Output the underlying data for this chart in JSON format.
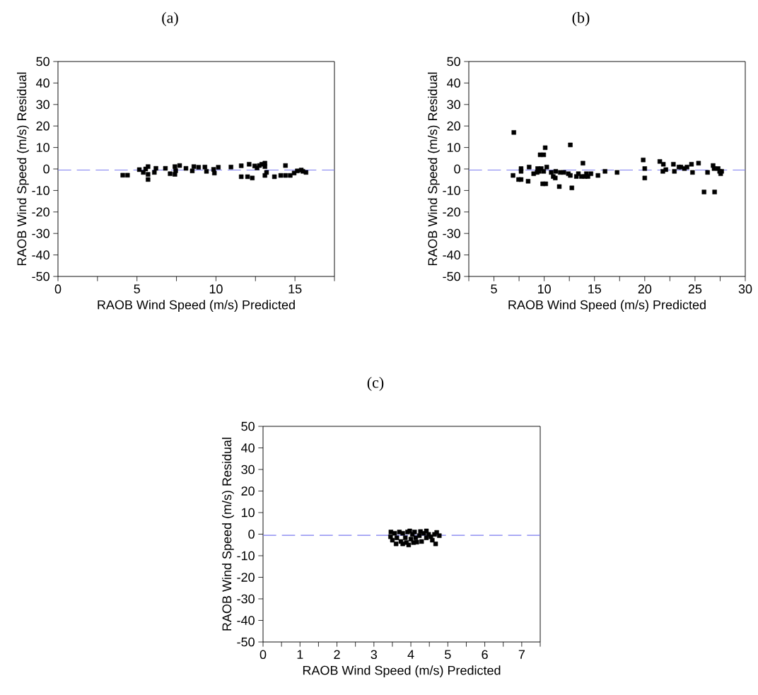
{
  "chart_data": [
    {
      "type": "scatter",
      "title": "(a)",
      "xlabel": "RAOB Wind Speed (m/s) Predicted",
      "ylabel": "RAOB Wind Speed (m/s) Residual",
      "color": "#000000",
      "marker": "square",
      "x": [
        4.1,
        4.4,
        5.15,
        5.4,
        5.55,
        5.7,
        5.7,
        5.7,
        6.1,
        6.2,
        6.8,
        7.1,
        7.4,
        7.4,
        7.45,
        7.7,
        8.1,
        8.5,
        8.6,
        8.9,
        9.3,
        9.4,
        9.85,
        9.9,
        10.15,
        10.95,
        11.6,
        11.6,
        12.0,
        12.1,
        12.3,
        12.45,
        12.6,
        12.75,
        12.9,
        13.1,
        13.1,
        13.2,
        13.1,
        13.7,
        14.1,
        14.4,
        14.4,
        14.7,
        14.95,
        15.15,
        15.4,
        15.5,
        15.7
      ],
      "values": [
        -2.9,
        -2.9,
        -0.3,
        -1.6,
        0,
        1.1,
        -2.5,
        -4.9,
        -1.6,
        0.3,
        0.3,
        -2.2,
        1.1,
        -2.5,
        -0.8,
        1.6,
        0.3,
        -0.9,
        1.1,
        0.8,
        0.9,
        -1.1,
        -0.2,
        -1.9,
        0.8,
        0.9,
        1.5,
        -3.6,
        -3.6,
        2.2,
        -4.2,
        1.4,
        0.5,
        1.6,
        2.2,
        2.7,
        1.1,
        -1.6,
        -3.0,
        -3.6,
        -3.0,
        1.6,
        -3.0,
        -3.0,
        -1.9,
        -0.9,
        -0.5,
        -1.1,
        -1.6
      ],
      "xlim": [
        0,
        17.5
      ],
      "ylim": [
        -50,
        50
      ],
      "xticks": [
        0,
        {
          "value": 2.5,
          "label": null
        },
        5,
        {
          "value": 7.5,
          "label": null
        },
        10,
        {
          "value": 12.5,
          "label": null
        },
        15,
        {
          "value": 17.5,
          "label": null
        }
      ],
      "yticks": [
        -50,
        -40,
        -30,
        -20,
        -10,
        0,
        10,
        20,
        30,
        40,
        50
      ],
      "ref_lines": [
        {
          "axis": "y",
          "value": -0.5,
          "color": "#7b7bf0",
          "line_style": "dashed"
        }
      ]
    },
    {
      "type": "scatter",
      "title": "(b)",
      "xlabel": "RAOB Wind Speed (m/s) Predicted",
      "ylabel": "RAOB Wind Speed (m/s) Residual",
      "color": "#000000",
      "marker": "square",
      "x": [
        6.98,
        6.9,
        7.45,
        7.7,
        7.7,
        7.7,
        8.4,
        8.5,
        8.95,
        9.3,
        9.35,
        9.5,
        9.6,
        9.95,
        9.7,
        9.85,
        10.15,
        9.95,
        10.1,
        10.25,
        10.7,
        10.9,
        11.1,
        11.15,
        11.5,
        11.6,
        11.95,
        12.4,
        12.6,
        12.6,
        12.75,
        13.2,
        13.4,
        13.85,
        13.7,
        14.05,
        14.35,
        14.2,
        14.65,
        15.35,
        16.05,
        17.25,
        19.85,
        20.0,
        20.0,
        21.5,
        21.85,
        21.8,
        22.1,
        22.85,
        22.95,
        23.4,
        23.6,
        23.95,
        24.2,
        24.65,
        24.75,
        25.35,
        25.9,
        26.25,
        26.8,
        26.95,
        26.9,
        27.3,
        27.45,
        27.55,
        27.65
      ],
      "values": [
        17.0,
        -3.0,
        -4.9,
        -4.9,
        0.2,
        -1.1,
        -5.7,
        0.9,
        -2.2,
        -1.6,
        0.2,
        -1.1,
        6.6,
        6.6,
        0.2,
        -6.9,
        -6.9,
        -1.1,
        9.9,
        0.9,
        -1.6,
        -3.5,
        -4.2,
        -1.1,
        -8.2,
        -1.6,
        -1.6,
        -2.2,
        -3.0,
        11.2,
        -8.8,
        -3.5,
        -2.2,
        2.7,
        -3.5,
        -3.5,
        -3.5,
        -2.2,
        -2.2,
        -3.0,
        -1.1,
        -1.6,
        4.2,
        0.2,
        -4.2,
        3.5,
        2.2,
        -1.1,
        -0.3,
        2.2,
        -1.1,
        0.9,
        0.9,
        0.2,
        0.9,
        2.2,
        -1.6,
        2.7,
        -10.7,
        -1.6,
        1.6,
        -10.7,
        0.2,
        0.2,
        -1.1,
        -2.2,
        -1.1
      ],
      "xlim": [
        2.5,
        30
      ],
      "ylim": [
        -50,
        50
      ],
      "xticks": [
        {
          "value": 2.5,
          "label": null
        },
        5,
        {
          "value": 7.5,
          "label": null
        },
        10,
        {
          "value": 12.5,
          "label": null
        },
        15,
        {
          "value": 17.5,
          "label": null
        },
        20,
        {
          "value": 22.5,
          "label": null
        },
        25,
        {
          "value": 27.5,
          "label": null
        },
        30
      ],
      "yticks": [
        -50,
        -40,
        -30,
        -20,
        -10,
        0,
        10,
        20,
        30,
        40,
        50
      ],
      "ref_lines": [
        {
          "axis": "y",
          "value": -0.5,
          "color": "#7b7bf0",
          "line_style": "dashed"
        }
      ]
    },
    {
      "type": "scatter",
      "title": "(c)",
      "xlabel": "RAOB Wind Speed (m/s) Predicted",
      "ylabel": "RAOB Wind Speed (m/s) Residual",
      "color": "#000000",
      "marker": "square",
      "x": [
        3.46,
        3.45,
        3.5,
        3.6,
        3.56,
        3.62,
        3.69,
        3.73,
        3.78,
        3.78,
        3.85,
        3.88,
        3.91,
        3.94,
        3.97,
        4.0,
        4.04,
        4.07,
        4.1,
        4.13,
        4.16,
        4.23,
        4.26,
        4.29,
        4.35,
        4.42,
        4.42,
        4.48,
        4.54,
        4.58,
        4.67,
        4.7,
        4.77,
        4.64
      ],
      "values": [
        1.0,
        -1.2,
        -2.8,
        -4.5,
        0.4,
        -1.7,
        1.0,
        -3.4,
        0.4,
        -4.5,
        -1.7,
        -3.9,
        1.0,
        -5.0,
        1.5,
        -2.3,
        -0.1,
        -3.9,
        1.0,
        -1.7,
        -3.7,
        -0.7,
        1.2,
        -3.4,
        0.4,
        1.5,
        -1.7,
        -0.1,
        -1.2,
        -2.8,
        -4.5,
        0.8,
        -0.7,
        -0.1
      ],
      "xlim": [
        0,
        7.5
      ],
      "ylim": [
        -50,
        50
      ],
      "xticks": [
        0,
        {
          "value": 0.5,
          "label": null
        },
        1,
        {
          "value": 1.5,
          "label": null
        },
        2,
        {
          "value": 2.5,
          "label": null
        },
        3,
        {
          "value": 3.5,
          "label": null
        },
        4,
        {
          "value": 4.5,
          "label": null
        },
        5,
        {
          "value": 5.5,
          "label": null
        },
        6,
        {
          "value": 6.5,
          "label": null
        },
        7,
        {
          "value": 7.5,
          "label": null
        }
      ],
      "yticks": [
        -50,
        -40,
        -30,
        -20,
        -10,
        0,
        10,
        20,
        30,
        40,
        50
      ],
      "ref_lines": [
        {
          "axis": "y",
          "value": -0.5,
          "color": "#7b7bf0",
          "line_style": "dashed"
        }
      ]
    }
  ]
}
